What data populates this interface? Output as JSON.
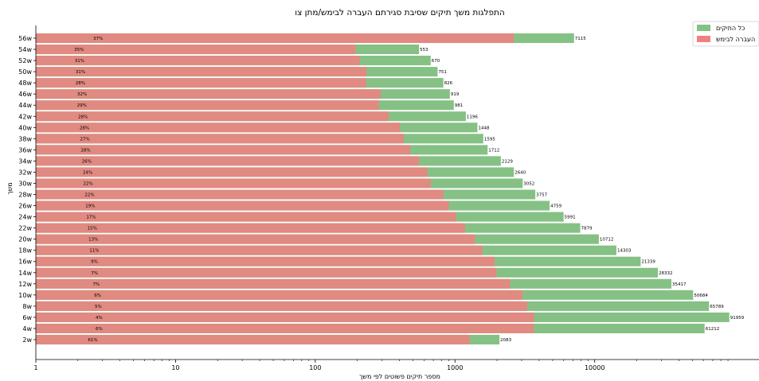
{
  "chart_data": {
    "type": "bar",
    "orientation": "horizontal",
    "title": "התפלגות משך תיקים שסיבת סגירתם העברה לבימש/מתן צו",
    "xlabel": "מספר תיקים פשוטים לפי משך",
    "ylabel": "משך",
    "x_scale": "log",
    "xlim": [
      1,
      150000
    ],
    "x_ticks": [
      "1",
      "10",
      "100",
      "1000",
      "10000"
    ],
    "grid": false,
    "legend_position": "top-right",
    "categories": [
      "2w",
      "4w",
      "6w",
      "8w",
      "10w",
      "12w",
      "14w",
      "16w",
      "18w",
      "20w",
      "22w",
      "24w",
      "26w",
      "28w",
      "30w",
      "32w",
      "34w",
      "36w",
      "38w",
      "40w",
      "42w",
      "44w",
      "46w",
      "48w",
      "50w",
      "52w",
      "54w",
      "56w"
    ],
    "series": [
      {
        "name": "כל התיקים",
        "color": "#85c185",
        "values": [
          2083,
          61212,
          91959,
          65789,
          50684,
          35417,
          28332,
          21339,
          14303,
          10712,
          7879,
          5991,
          4759,
          3757,
          3052,
          2640,
          2129,
          1712,
          1595,
          1448,
          1196,
          981,
          919,
          826,
          751,
          670,
          553,
          7115
        ],
        "labels": [
          "2083",
          "61212",
          "91959",
          "65789",
          "50684",
          "35417",
          "28332",
          "21339",
          "14303",
          "10712",
          "7879",
          "5991",
          "4759",
          "3757",
          "3052",
          "2640",
          "2129",
          "1712",
          "1595",
          "1448",
          "1196",
          "981",
          "919",
          "826",
          "751",
          "670",
          "553",
          "7115"
        ]
      },
      {
        "name": "העברה לבימש",
        "color": "#f08080",
        "values": [
          1271,
          3673,
          3678,
          3289,
          3041,
          2479,
          1983,
          1921,
          1573,
          1393,
          1182,
          1018,
          904,
          827,
          671,
          634,
          554,
          479,
          431,
          405,
          335,
          285,
          294,
          231,
          233,
          208,
          194,
          2633
        ],
        "labels": [
          "61%",
          "6%",
          "4%",
          "5%",
          "6%",
          "7%",
          "7%",
          "9%",
          "11%",
          "13%",
          "15%",
          "17%",
          "19%",
          "22%",
          "22%",
          "24%",
          "26%",
          "28%",
          "27%",
          "28%",
          "28%",
          "29%",
          "32%",
          "28%",
          "31%",
          "31%",
          "35%",
          "37%"
        ]
      }
    ]
  }
}
